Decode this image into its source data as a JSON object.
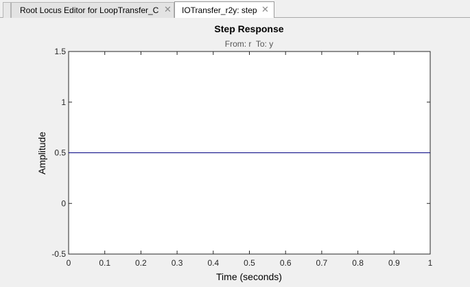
{
  "tabs": [
    {
      "label": "Root Locus Editor for LoopTransfer_C",
      "active": false
    },
    {
      "label": "IOTransfer_r2y: step",
      "active": true
    }
  ],
  "close_icon_glyph": "✕",
  "chart_data": {
    "type": "line",
    "title": "Step Response",
    "subtitle": "From: r  To: y",
    "xlabel": "Time (seconds)",
    "ylabel": "Amplitude",
    "xlim": [
      0,
      1
    ],
    "ylim": [
      -0.5,
      1.5
    ],
    "xticks": [
      0,
      0.1,
      0.2,
      0.3,
      0.4,
      0.5,
      0.6,
      0.7,
      0.8,
      0.9,
      1
    ],
    "xtick_labels": [
      "0",
      "0.1",
      "0.2",
      "0.3",
      "0.4",
      "0.5",
      "0.6",
      "0.7",
      "0.8",
      "0.9",
      "1"
    ],
    "yticks": [
      -0.5,
      0,
      0.5,
      1,
      1.5
    ],
    "ytick_labels": [
      "-0.5",
      "0",
      "0.5",
      "1",
      "1.5"
    ],
    "grid": false,
    "line_color": "#000080",
    "series": [
      {
        "x": [
          0,
          1
        ],
        "y": [
          0.5,
          0.5
        ]
      }
    ]
  }
}
